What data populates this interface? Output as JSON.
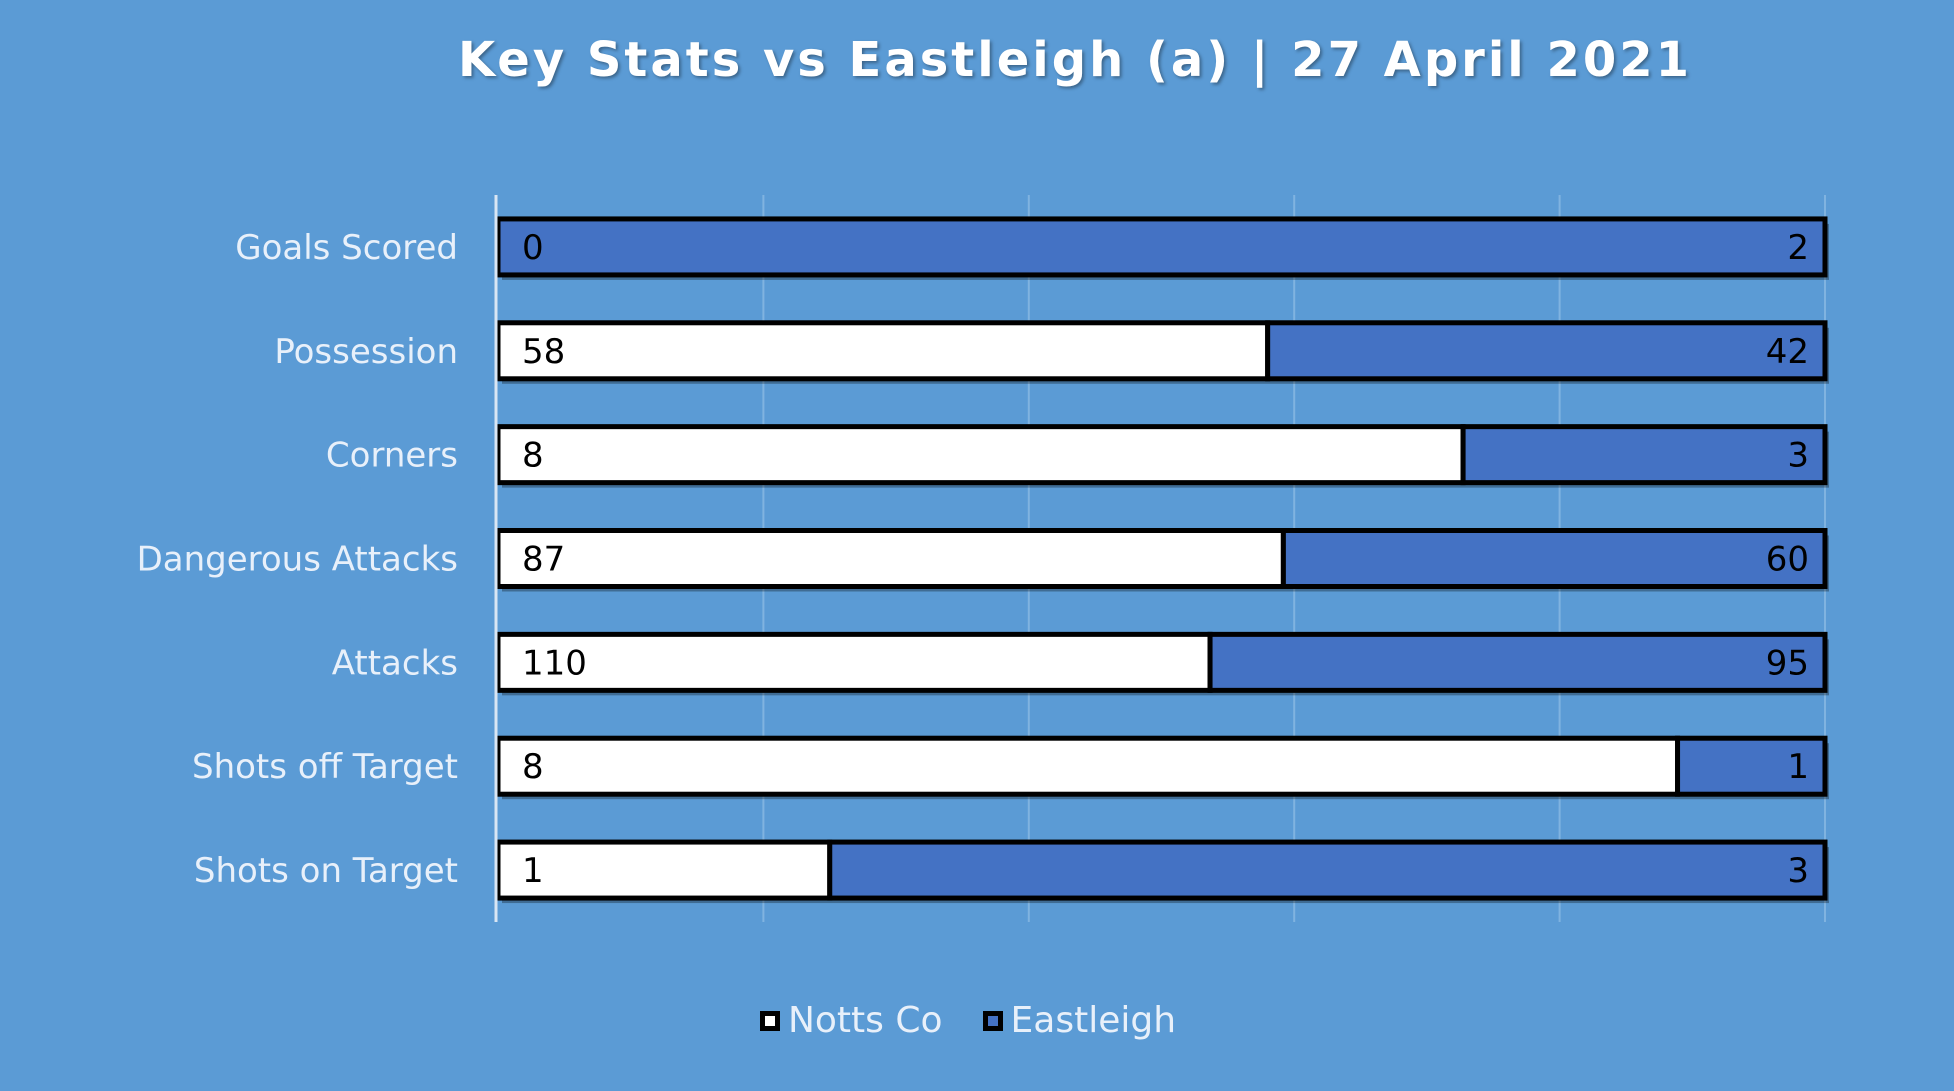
{
  "chart_data": {
    "type": "bar",
    "title": "Key Stats vs Eastleigh (a) | 27 April 2021",
    "orientation": "horizontal",
    "stacking": "percent",
    "categories": [
      "Goals Scored",
      "Possession",
      "Corners",
      "Dangerous Attacks",
      "Attacks",
      "Shots off Target",
      "Shots on Target"
    ],
    "series": [
      {
        "name": "Notts Co",
        "values": [
          0,
          58,
          8,
          87,
          110,
          8,
          1
        ],
        "color": "#ffffff"
      },
      {
        "name": "Eastleigh",
        "values": [
          2,
          42,
          3,
          60,
          95,
          1,
          3
        ],
        "color": "#4472c4"
      }
    ],
    "grid": true,
    "legend_position": "bottom",
    "xlabel": "",
    "ylabel": ""
  },
  "colors": {
    "background": "#5b9bd5",
    "home_bar": "#ffffff",
    "away_bar": "#4472c4",
    "bar_border": "#000000",
    "gridline": "#80b3e0",
    "axis_line": "#d9e6f4"
  }
}
